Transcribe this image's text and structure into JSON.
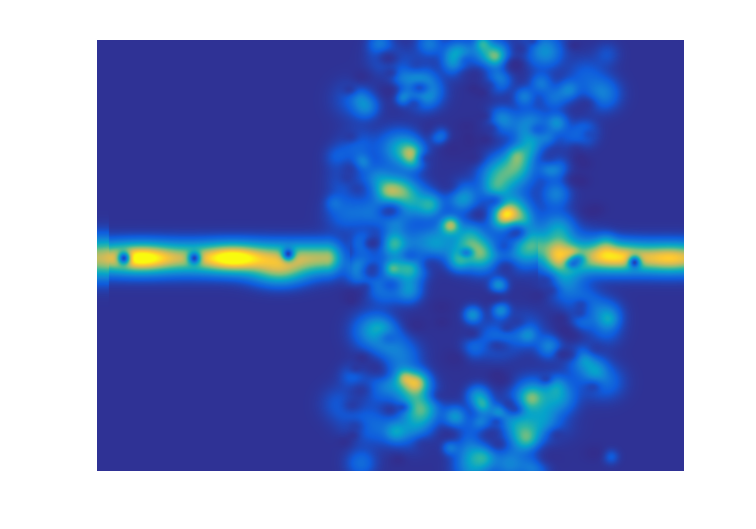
{
  "chart_data": {
    "type": "heatmap",
    "title": "",
    "xlabel": "",
    "ylabel": "",
    "colormap": "parula",
    "colormap_stops": [
      "#352a87",
      "#0f5cdd",
      "#1481d6",
      "#06a4ca",
      "#2eb7a4",
      "#87bf77",
      "#d1bb59",
      "#fec832",
      "#f9fb0e"
    ],
    "background_color": "#352a87",
    "grid": false,
    "legend": "none",
    "axes_visible": false,
    "value_range": [
      0,
      1
    ],
    "features": {
      "waveguide_left": {
        "y": 0.505,
        "x_from": 0.0,
        "x_to": 0.39,
        "peak": 0.9
      },
      "waveguide_right": {
        "y": 0.505,
        "x_from": 0.79,
        "x_to": 1.0,
        "peak": 0.78
      },
      "nodal_points": [
        {
          "x": 0.045,
          "y": 0.505
        },
        {
          "x": 0.165,
          "y": 0.505
        },
        {
          "x": 0.325,
          "y": 0.495
        },
        {
          "x": 0.915,
          "y": 0.515
        }
      ],
      "hot_spots": [
        {
          "x": 0.075,
          "y": 0.505,
          "value": 0.9
        },
        {
          "x": 0.23,
          "y": 0.505,
          "value": 0.95
        },
        {
          "x": 0.31,
          "y": 0.54,
          "value": 0.85
        },
        {
          "x": 0.885,
          "y": 0.5,
          "value": 0.78
        },
        {
          "x": 0.975,
          "y": 0.505,
          "value": 0.7
        },
        {
          "x": 0.74,
          "y": 0.9,
          "value": 0.55
        },
        {
          "x": 0.655,
          "y": 0.485,
          "value": 0.5
        },
        {
          "x": 0.48,
          "y": 0.4,
          "value": 0.45
        }
      ],
      "scattering_region": {
        "x_from": 0.4,
        "x_to": 0.88,
        "y_from": 0.0,
        "y_to": 1.0,
        "level": 0.3
      }
    }
  }
}
